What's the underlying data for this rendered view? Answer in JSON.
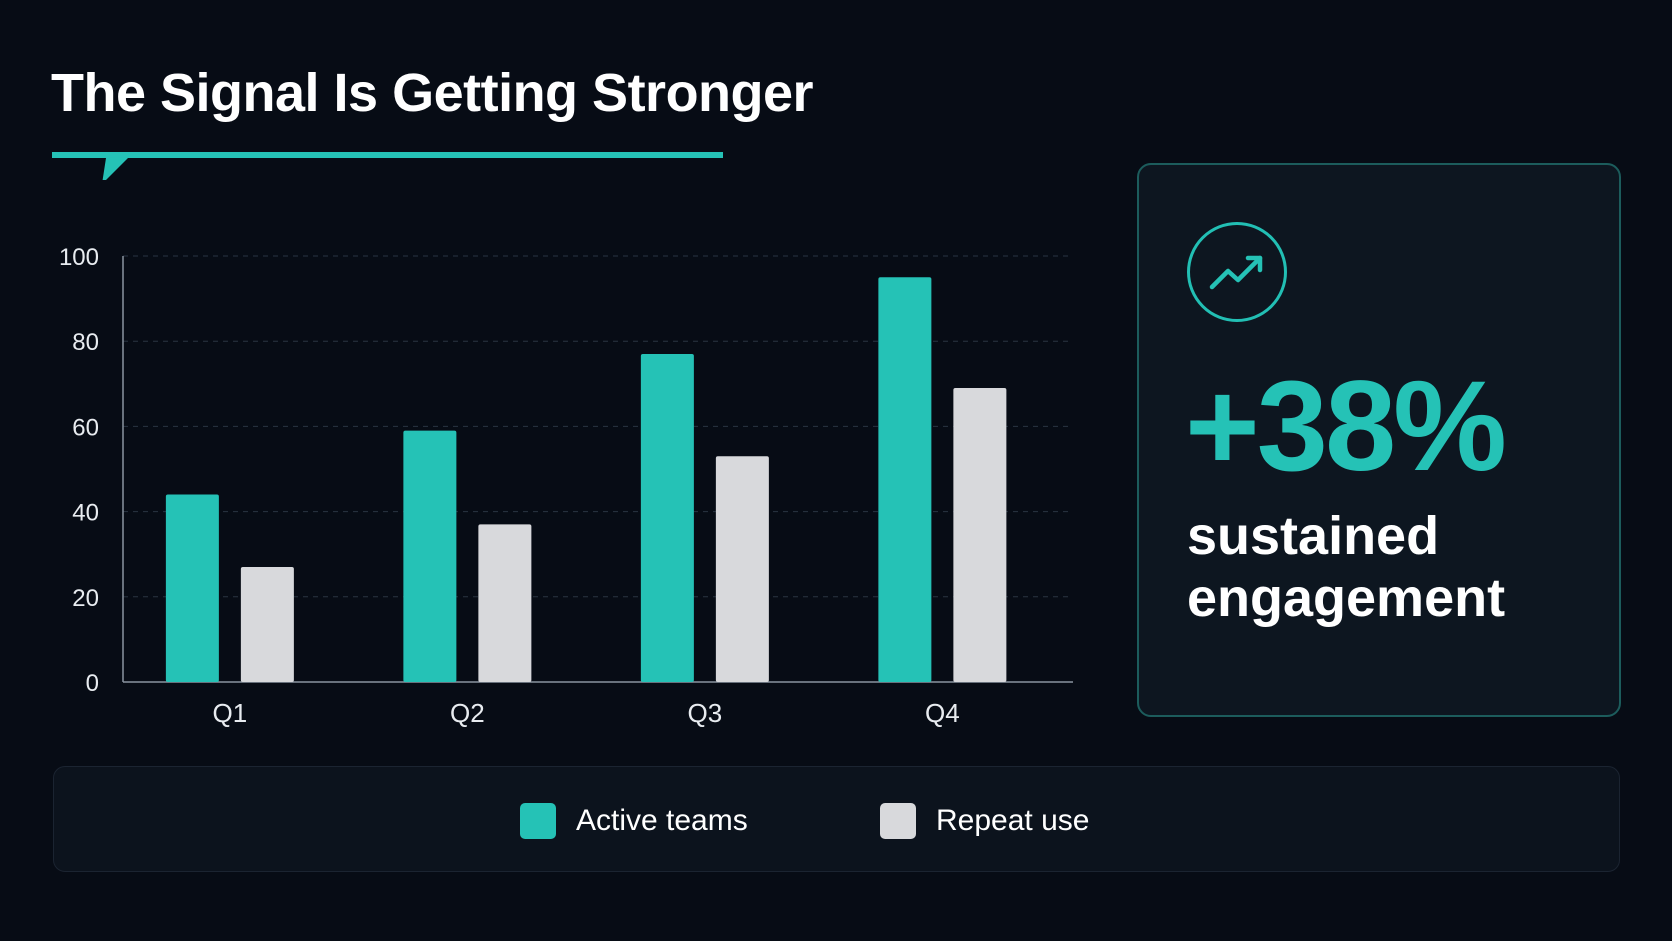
{
  "title": "The Signal Is Getting Stronger",
  "colors": {
    "background": "#070c15",
    "accent": "#25c2b6",
    "secondary_bar": "#d8d9dc",
    "text": "#ffffff"
  },
  "kpi": {
    "icon": "trending-up-icon",
    "value": "+38%",
    "caption": "sustained engagement"
  },
  "chart_data": {
    "type": "bar",
    "categories": [
      "Q1",
      "Q2",
      "Q3",
      "Q4"
    ],
    "series": [
      {
        "name": "Active teams",
        "values": [
          44,
          59,
          77,
          95
        ],
        "color": "#25c2b6"
      },
      {
        "name": "Repeat use",
        "values": [
          27,
          37,
          53,
          69
        ],
        "color": "#d8d9dc"
      }
    ],
    "ylim": [
      0,
      100
    ],
    "yticks": [
      0,
      20,
      40,
      60,
      80,
      100
    ],
    "grid": true,
    "legend_position": "bottom"
  }
}
